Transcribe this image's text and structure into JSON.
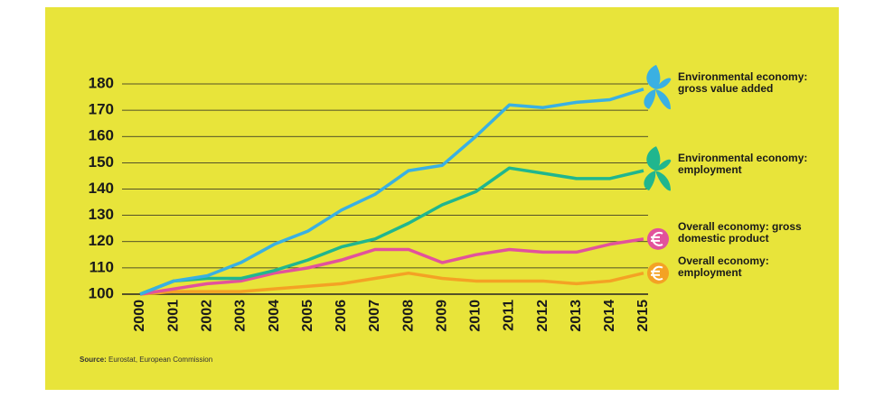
{
  "chart_data": {
    "type": "line",
    "categories": [
      "2000",
      "2001",
      "2002",
      "2003",
      "2004",
      "2005",
      "2006",
      "2007",
      "2008",
      "2009",
      "2010",
      "2011",
      "2012",
      "2013",
      "2014",
      "2015"
    ],
    "series": [
      {
        "name": "Environmental economy: gross value added",
        "color": "#3ab0e2",
        "icon": "leaf",
        "values": [
          100,
          105,
          107,
          112,
          119,
          124,
          132,
          138,
          147,
          149,
          160,
          172,
          171,
          173,
          174,
          178
        ]
      },
      {
        "name": "Environmental economy: employment",
        "color": "#20b68e",
        "icon": "leaf",
        "values": [
          100,
          105,
          106,
          106,
          109,
          113,
          118,
          121,
          127,
          134,
          139,
          148,
          146,
          144,
          144,
          147
        ]
      },
      {
        "name": "Overall economy: gross domestic product",
        "color": "#e2529c",
        "icon": "euro",
        "values": [
          100,
          102,
          104,
          105,
          108,
          110,
          113,
          117,
          117,
          112,
          115,
          117,
          116,
          116,
          119,
          121
        ]
      },
      {
        "name": "Overall economy: employment",
        "color": "#f4a224",
        "icon": "euro",
        "values": [
          100,
          101,
          101,
          101,
          102,
          103,
          104,
          106,
          108,
          106,
          105,
          105,
          105,
          104,
          105,
          108
        ]
      }
    ],
    "ylim": [
      100,
      180
    ],
    "yticks": [
      100,
      110,
      120,
      130,
      140,
      150,
      160,
      170,
      180
    ],
    "grid": true,
    "source_label": "Source:",
    "source": "Eurostat, European Commission"
  }
}
